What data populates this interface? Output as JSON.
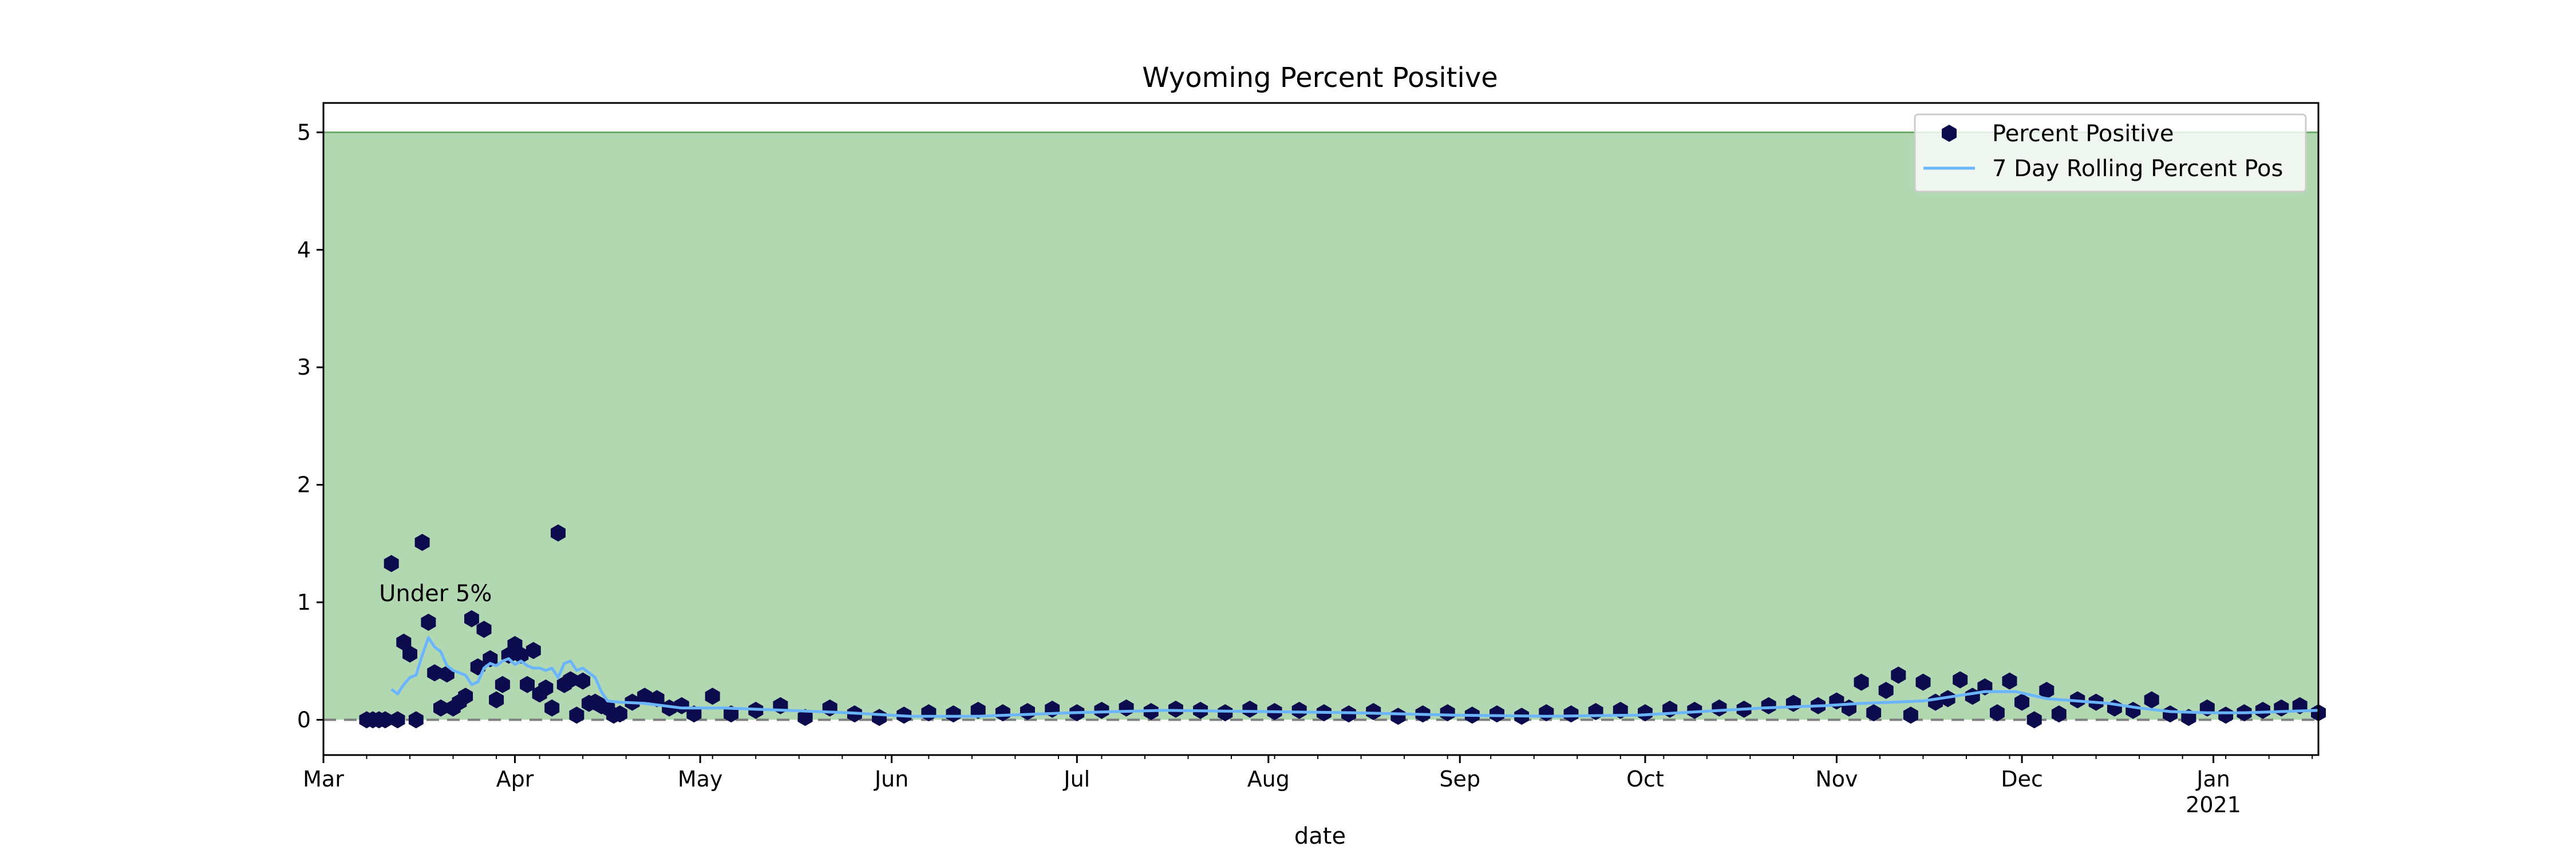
{
  "chart_data": {
    "type": "scatter",
    "title": "Wyoming Percent Positive",
    "xlabel": "date",
    "ylabel": "",
    "xlim": [
      "2020-03-01",
      "2021-01-18"
    ],
    "ylim": [
      -0.3,
      5.25
    ],
    "yticks": [
      0,
      1,
      2,
      3,
      4,
      5
    ],
    "xticks": [
      {
        "date": "2020-03-01",
        "label": "Mar",
        "sublabel": ""
      },
      {
        "date": "2020-04-01",
        "label": "Apr",
        "sublabel": ""
      },
      {
        "date": "2020-05-01",
        "label": "May",
        "sublabel": ""
      },
      {
        "date": "2020-06-01",
        "label": "Jun",
        "sublabel": ""
      },
      {
        "date": "2020-07-01",
        "label": "Jul",
        "sublabel": ""
      },
      {
        "date": "2020-08-01",
        "label": "Aug",
        "sublabel": ""
      },
      {
        "date": "2020-09-01",
        "label": "Sep",
        "sublabel": ""
      },
      {
        "date": "2020-10-01",
        "label": "Oct",
        "sublabel": ""
      },
      {
        "date": "2020-11-01",
        "label": "Nov",
        "sublabel": ""
      },
      {
        "date": "2020-12-01",
        "label": "Dec",
        "sublabel": ""
      },
      {
        "date": "2021-01-01",
        "label": "Jan",
        "sublabel": "2021"
      }
    ],
    "grid": false,
    "legend_position": "upper right",
    "colors": {
      "points": "#0b0b4d",
      "rolling": "#6bb5ff",
      "band": "#b2d8b2",
      "band_edge": "#6aa86a",
      "zero_line": "#808080"
    },
    "band": {
      "from": 0,
      "to": 5,
      "label": "Under 5%",
      "label_at": "2020-03-10",
      "label_y": 1.0
    },
    "reference_line": {
      "y": 0,
      "style": "dashed"
    },
    "series": [
      {
        "name": "Percent Positive",
        "kind": "scatter",
        "x": [
          "2020-03-08",
          "2020-03-09",
          "2020-03-10",
          "2020-03-11",
          "2020-03-12",
          "2020-03-13",
          "2020-03-14",
          "2020-03-15",
          "2020-03-16",
          "2020-03-17",
          "2020-03-18",
          "2020-03-19",
          "2020-03-20",
          "2020-03-21",
          "2020-03-22",
          "2020-03-23",
          "2020-03-24",
          "2020-03-25",
          "2020-03-26",
          "2020-03-27",
          "2020-03-28",
          "2020-03-29",
          "2020-03-30",
          "2020-03-31",
          "2020-04-01",
          "2020-04-02",
          "2020-04-03",
          "2020-04-04",
          "2020-04-05",
          "2020-04-06",
          "2020-04-07",
          "2020-04-08",
          "2020-04-09",
          "2020-04-10",
          "2020-04-11",
          "2020-04-12",
          "2020-04-13",
          "2020-04-14",
          "2020-04-15",
          "2020-04-16",
          "2020-04-17",
          "2020-04-18",
          "2020-04-20",
          "2020-04-22",
          "2020-04-24",
          "2020-04-26",
          "2020-04-28",
          "2020-04-30",
          "2020-05-03",
          "2020-05-06",
          "2020-05-10",
          "2020-05-14",
          "2020-05-18",
          "2020-05-22",
          "2020-05-26",
          "2020-05-30",
          "2020-06-03",
          "2020-06-07",
          "2020-06-11",
          "2020-06-15",
          "2020-06-19",
          "2020-06-23",
          "2020-06-27",
          "2020-07-01",
          "2020-07-05",
          "2020-07-09",
          "2020-07-13",
          "2020-07-17",
          "2020-07-21",
          "2020-07-25",
          "2020-07-29",
          "2020-08-02",
          "2020-08-06",
          "2020-08-10",
          "2020-08-14",
          "2020-08-18",
          "2020-08-22",
          "2020-08-26",
          "2020-08-30",
          "2020-09-03",
          "2020-09-07",
          "2020-09-11",
          "2020-09-15",
          "2020-09-19",
          "2020-09-23",
          "2020-09-27",
          "2020-10-01",
          "2020-10-05",
          "2020-10-09",
          "2020-10-13",
          "2020-10-17",
          "2020-10-21",
          "2020-10-25",
          "2020-10-29",
          "2020-11-01",
          "2020-11-03",
          "2020-11-05",
          "2020-11-07",
          "2020-11-09",
          "2020-11-11",
          "2020-11-13",
          "2020-11-15",
          "2020-11-17",
          "2020-11-19",
          "2020-11-21",
          "2020-11-23",
          "2020-11-25",
          "2020-11-27",
          "2020-11-29",
          "2020-12-01",
          "2020-12-03",
          "2020-12-05",
          "2020-12-07",
          "2020-12-10",
          "2020-12-13",
          "2020-12-16",
          "2020-12-19",
          "2020-12-22",
          "2020-12-25",
          "2020-12-28",
          "2020-12-31",
          "2021-01-03",
          "2021-01-06",
          "2021-01-09",
          "2021-01-12",
          "2021-01-15",
          "2021-01-18"
        ],
        "y": [
          0.0,
          0.0,
          0.0,
          0.0,
          1.33,
          0.0,
          0.66,
          0.56,
          0.0,
          1.51,
          0.83,
          0.4,
          0.1,
          0.39,
          0.1,
          0.15,
          0.2,
          0.86,
          0.45,
          0.77,
          0.52,
          0.17,
          0.3,
          0.55,
          0.64,
          0.55,
          0.3,
          0.59,
          0.22,
          0.27,
          0.1,
          1.59,
          0.3,
          0.34,
          0.04,
          0.33,
          0.14,
          0.15,
          0.12,
          0.1,
          0.04,
          0.05,
          0.15,
          0.2,
          0.18,
          0.1,
          0.12,
          0.05,
          0.2,
          0.05,
          0.08,
          0.12,
          0.02,
          0.1,
          0.05,
          0.02,
          0.04,
          0.06,
          0.05,
          0.08,
          0.06,
          0.07,
          0.09,
          0.06,
          0.08,
          0.1,
          0.07,
          0.09,
          0.08,
          0.06,
          0.09,
          0.07,
          0.08,
          0.06,
          0.05,
          0.07,
          0.03,
          0.05,
          0.06,
          0.04,
          0.05,
          0.03,
          0.06,
          0.05,
          0.07,
          0.08,
          0.06,
          0.09,
          0.08,
          0.1,
          0.09,
          0.12,
          0.14,
          0.12,
          0.16,
          0.1,
          0.32,
          0.06,
          0.25,
          0.38,
          0.04,
          0.32,
          0.15,
          0.18,
          0.34,
          0.2,
          0.28,
          0.06,
          0.33,
          0.15,
          0.0,
          0.25,
          0.05,
          0.17,
          0.15,
          0.1,
          0.08,
          0.17,
          0.05,
          0.02,
          0.1,
          0.04,
          0.06,
          0.08,
          0.1,
          0.12,
          0.06
        ]
      },
      {
        "name": "7 Day Rolling Percent Pos",
        "kind": "line",
        "x": [
          "2020-03-12",
          "2020-03-13",
          "2020-03-14",
          "2020-03-15",
          "2020-03-16",
          "2020-03-17",
          "2020-03-18",
          "2020-03-19",
          "2020-03-20",
          "2020-03-21",
          "2020-03-22",
          "2020-03-23",
          "2020-03-24",
          "2020-03-25",
          "2020-03-26",
          "2020-03-27",
          "2020-03-28",
          "2020-03-29",
          "2020-03-30",
          "2020-03-31",
          "2020-04-01",
          "2020-04-02",
          "2020-04-03",
          "2020-04-04",
          "2020-04-05",
          "2020-04-06",
          "2020-04-07",
          "2020-04-08",
          "2020-04-09",
          "2020-04-10",
          "2020-04-11",
          "2020-04-12",
          "2020-04-13",
          "2020-04-14",
          "2020-04-15",
          "2020-04-16",
          "2020-04-18",
          "2020-04-22",
          "2020-04-28",
          "2020-05-05",
          "2020-05-15",
          "2020-05-25",
          "2020-06-04",
          "2020-06-15",
          "2020-06-30",
          "2020-07-15",
          "2020-07-31",
          "2020-08-15",
          "2020-08-31",
          "2020-09-15",
          "2020-09-30",
          "2020-10-10",
          "2020-10-20",
          "2020-10-30",
          "2020-11-05",
          "2020-11-10",
          "2020-11-15",
          "2020-11-20",
          "2020-11-25",
          "2020-11-30",
          "2020-12-05",
          "2020-12-10",
          "2020-12-15",
          "2020-12-20",
          "2020-12-25",
          "2020-12-31",
          "2021-01-06",
          "2021-01-12",
          "2021-01-18"
        ],
        "y": [
          0.26,
          0.22,
          0.3,
          0.36,
          0.38,
          0.55,
          0.7,
          0.62,
          0.58,
          0.46,
          0.42,
          0.4,
          0.38,
          0.3,
          0.32,
          0.44,
          0.48,
          0.46,
          0.5,
          0.52,
          0.47,
          0.5,
          0.46,
          0.44,
          0.44,
          0.42,
          0.44,
          0.36,
          0.48,
          0.5,
          0.42,
          0.44,
          0.4,
          0.36,
          0.24,
          0.16,
          0.15,
          0.14,
          0.1,
          0.1,
          0.08,
          0.06,
          0.03,
          0.03,
          0.06,
          0.08,
          0.07,
          0.06,
          0.04,
          0.03,
          0.04,
          0.07,
          0.1,
          0.12,
          0.14,
          0.15,
          0.16,
          0.2,
          0.24,
          0.24,
          0.18,
          0.16,
          0.14,
          0.1,
          0.07,
          0.06,
          0.06,
          0.07,
          0.08
        ]
      }
    ]
  }
}
